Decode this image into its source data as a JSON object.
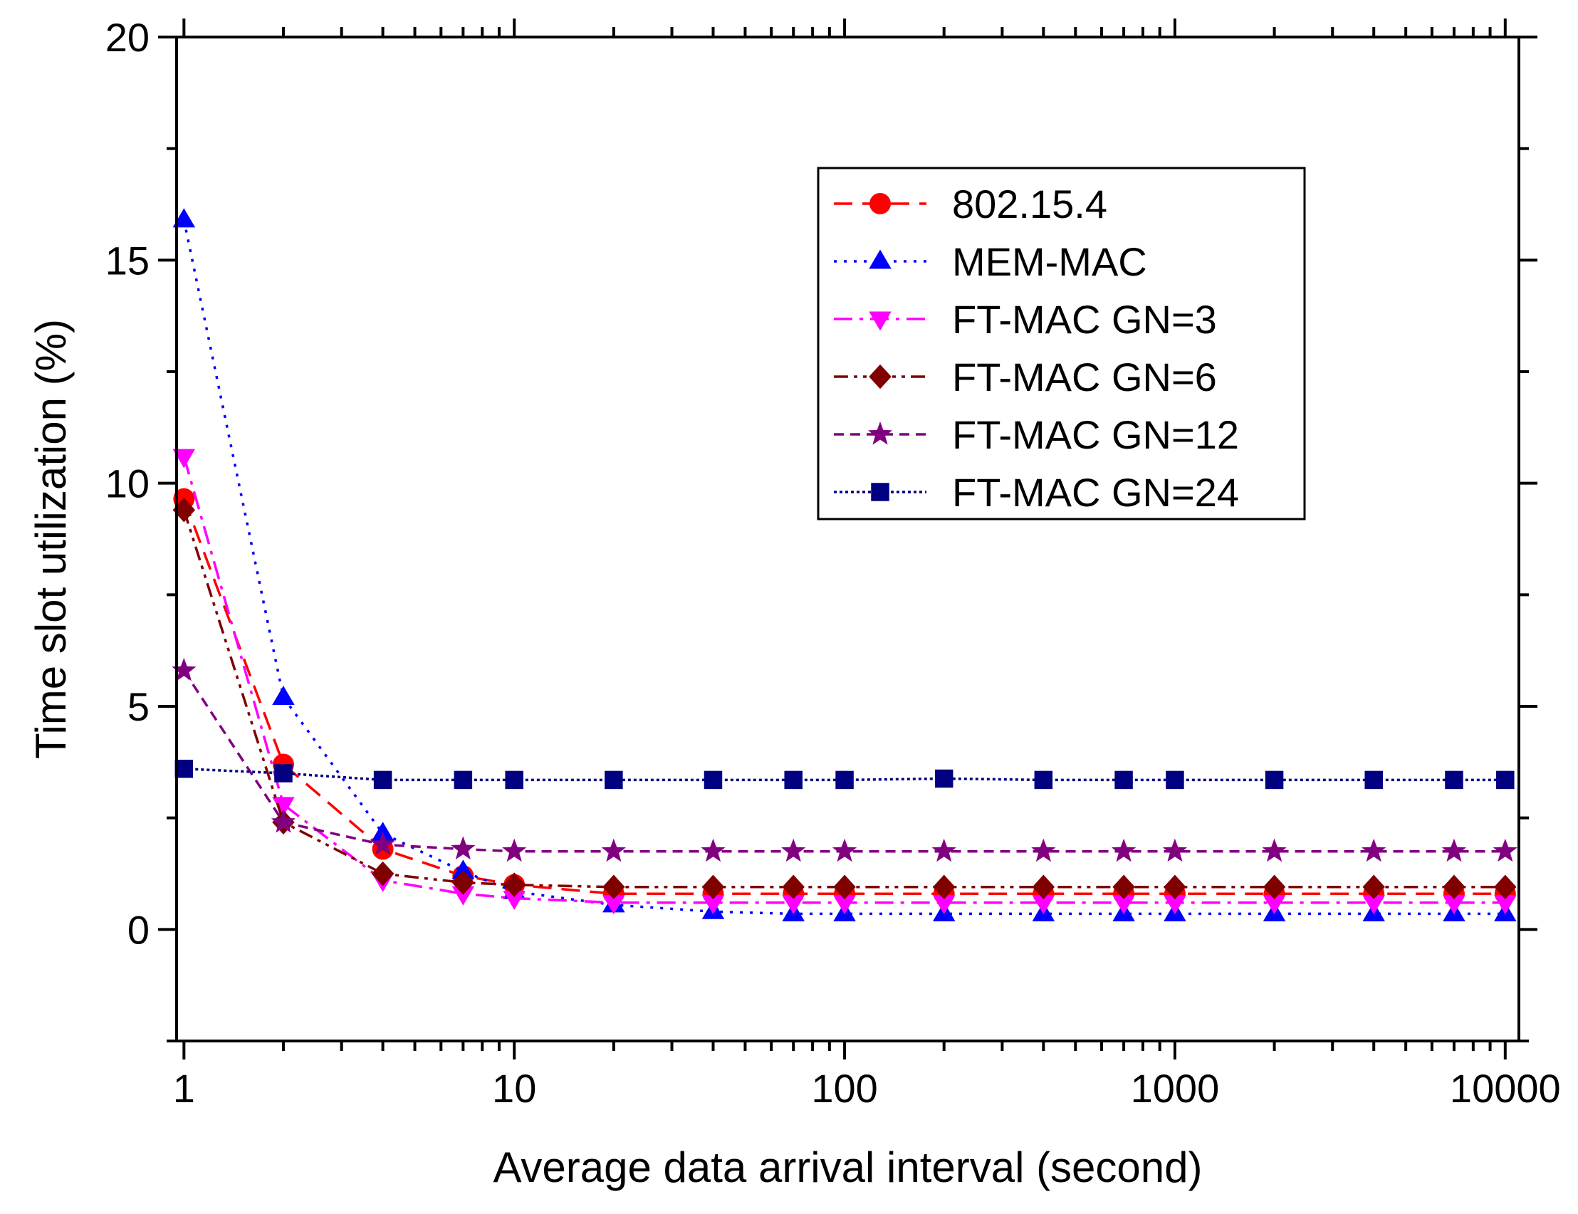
{
  "chart_data": {
    "type": "line",
    "title": "",
    "xlabel": "Average data arrival interval (second)",
    "ylabel": "Time slot utilization (%)",
    "x_scale": "log",
    "xlim": [
      0.95,
      11000
    ],
    "ylim": [
      -2.5,
      20
    ],
    "x_ticks": [
      1,
      10,
      100,
      1000,
      10000
    ],
    "x_tick_labels": [
      "1",
      "10",
      "100",
      "1000",
      "10000"
    ],
    "y_ticks": [
      0,
      5,
      10,
      15,
      20
    ],
    "y_tick_labels": [
      "0",
      "5",
      "10",
      "15",
      "20"
    ],
    "grid": false,
    "legend_position": "top-right",
    "x": [
      1,
      2,
      4,
      7,
      10,
      20,
      40,
      70,
      100,
      200,
      400,
      700,
      1000,
      2000,
      4000,
      7000,
      10000
    ],
    "series": [
      {
        "name": "802.15.4",
        "color": "#ff0000",
        "marker": "circle",
        "dash": "dashed",
        "values": [
          9.65,
          3.7,
          1.8,
          1.2,
          1.0,
          0.8,
          0.8,
          0.8,
          0.8,
          0.8,
          0.8,
          0.8,
          0.8,
          0.8,
          0.8,
          0.8,
          0.8
        ]
      },
      {
        "name": "MEM-MAC",
        "color": "#0000ff",
        "marker": "triangle-up",
        "dash": "dotted",
        "values": [
          15.9,
          5.2,
          2.15,
          1.3,
          0.85,
          0.55,
          0.4,
          0.35,
          0.35,
          0.35,
          0.35,
          0.35,
          0.35,
          0.35,
          0.35,
          0.35,
          0.35
        ]
      },
      {
        "name": "FT-MAC GN=3",
        "color": "#ff00ff",
        "marker": "triangle-down",
        "dash": "dash-dot",
        "values": [
          10.6,
          2.8,
          1.1,
          0.8,
          0.7,
          0.6,
          0.6,
          0.6,
          0.6,
          0.6,
          0.6,
          0.6,
          0.6,
          0.6,
          0.6,
          0.6,
          0.6
        ]
      },
      {
        "name": "FT-MAC GN=6",
        "color": "#800000",
        "marker": "diamond",
        "dash": "dash-dot-dot",
        "values": [
          9.4,
          2.4,
          1.25,
          1.05,
          1.0,
          0.95,
          0.95,
          0.95,
          0.95,
          0.95,
          0.95,
          0.95,
          0.95,
          0.95,
          0.95,
          0.95,
          0.95
        ]
      },
      {
        "name": "FT-MAC GN=12",
        "color": "#800080",
        "marker": "star",
        "dash": "short-dash",
        "values": [
          5.8,
          2.4,
          1.9,
          1.8,
          1.75,
          1.75,
          1.75,
          1.75,
          1.75,
          1.75,
          1.75,
          1.75,
          1.75,
          1.75,
          1.75,
          1.75,
          1.75
        ]
      },
      {
        "name": "FT-MAC GN=24",
        "color": "#000080",
        "marker": "square",
        "dash": "dense-dotted",
        "values": [
          3.6,
          3.5,
          3.35,
          3.35,
          3.35,
          3.35,
          3.35,
          3.35,
          3.35,
          3.38,
          3.35,
          3.35,
          3.35,
          3.35,
          3.35,
          3.35,
          3.35
        ]
      }
    ]
  }
}
